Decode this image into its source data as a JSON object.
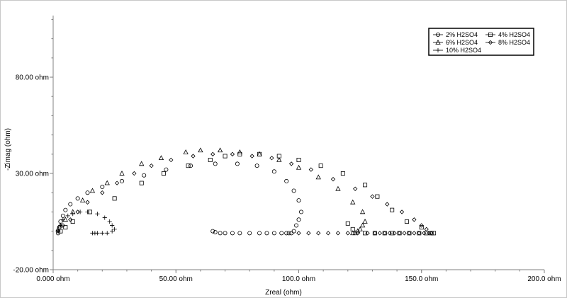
{
  "chart_data": {
    "type": "scatter",
    "xlabel": "Zreal (ohm)",
    "ylabel": "-Zimag (ohm)",
    "xlim": [
      0,
      200
    ],
    "ylim": [
      -20,
      112
    ],
    "x_ticks": [
      {
        "value": 0,
        "label": "0.000 ohm"
      },
      {
        "value": 50,
        "label": "50.00 ohm"
      },
      {
        "value": 100,
        "label": "100.0 ohm"
      },
      {
        "value": 150,
        "label": "150.0 ohm"
      },
      {
        "value": 200,
        "label": "200.0 ohm"
      }
    ],
    "y_ticks": [
      {
        "value": 80,
        "label": "80.00 ohm"
      },
      {
        "value": 30,
        "label": "30.00 ohm"
      },
      {
        "value": -20,
        "label": "-20.00 ohm"
      }
    ],
    "grid": false,
    "legend_position": "top-right",
    "series": [
      {
        "name": "2% H2SO4",
        "marker": "circle",
        "x": [
          2,
          2.5,
          3,
          4,
          5,
          7,
          10,
          14,
          20,
          28,
          37,
          46,
          56,
          66,
          75,
          83,
          90,
          95,
          98,
          100,
          101,
          100,
          99,
          98,
          97,
          96,
          95,
          93,
          90,
          87,
          84,
          80,
          76,
          73,
          70,
          68,
          66,
          65
        ],
        "y": [
          -1,
          2,
          5,
          8,
          11,
          14,
          17,
          20,
          23,
          26,
          29,
          32,
          34,
          35,
          35,
          34,
          31,
          26,
          21,
          16,
          10,
          6,
          3,
          0,
          -1,
          -1,
          -1,
          -1,
          -1,
          -1,
          -1,
          -1,
          -1,
          -1,
          -1,
          -1,
          -0.5,
          0
        ]
      },
      {
        "name": "4% H2SO4",
        "marker": "square",
        "x": [
          3,
          5,
          8,
          15,
          25,
          36,
          45,
          55,
          64,
          70,
          76,
          84,
          92,
          100,
          109,
          118,
          127,
          132,
          138,
          144,
          150,
          154,
          155,
          152,
          149,
          145,
          141,
          138,
          135,
          131,
          127,
          122,
          120
        ],
        "y": [
          0,
          2,
          5,
          10,
          17,
          25,
          30,
          34,
          37,
          39,
          40,
          40,
          39,
          37,
          34,
          30,
          24,
          18,
          11,
          5,
          2,
          -1,
          -1,
          -1,
          -1,
          -1,
          -1,
          -1,
          -1,
          -1,
          -1,
          1,
          4
        ]
      },
      {
        "name": "6% H2SO4",
        "marker": "triangle",
        "x": [
          2,
          3,
          5,
          8,
          12,
          16,
          22,
          28,
          36,
          44,
          54,
          60,
          68,
          76,
          84,
          92,
          100,
          108,
          116,
          122,
          126,
          127,
          126,
          125,
          124,
          123,
          122
        ],
        "y": [
          1,
          3,
          6,
          10,
          16,
          21,
          25,
          30,
          35,
          38,
          41,
          42,
          42,
          41,
          40,
          37,
          33,
          28,
          22,
          15,
          10,
          5,
          3,
          1,
          0,
          -1,
          -1
        ]
      },
      {
        "name": "8% H2SO4",
        "marker": "diamond",
        "x": [
          2,
          4,
          7,
          10,
          14,
          20,
          26,
          33,
          40,
          48,
          57,
          65,
          73,
          81,
          89,
          97,
          105,
          114,
          123,
          130,
          136,
          142,
          147,
          150,
          152,
          154,
          154,
          153,
          151,
          149,
          147,
          145,
          143,
          141,
          139,
          137,
          135,
          133,
          131,
          128,
          124,
          120,
          116,
          112,
          108,
          104,
          100
        ],
        "y": [
          0,
          3,
          6,
          10,
          15,
          20,
          25,
          30,
          34,
          37,
          39,
          40,
          40,
          39,
          38,
          35,
          32,
          27,
          22,
          18,
          14,
          10,
          6,
          3,
          1,
          -1,
          -1,
          -1,
          -1,
          -1,
          -1,
          -1,
          -1,
          -1,
          -1,
          -1,
          -1,
          -1,
          -1,
          -1,
          -1,
          -1,
          -1,
          -1,
          -1,
          -1,
          -1
        ]
      },
      {
        "name": "10% H2SO4",
        "marker": "plus",
        "x": [
          2,
          3,
          4,
          6,
          8,
          11,
          14,
          18,
          21,
          23,
          24,
          25,
          24,
          22,
          20,
          18,
          17,
          16
        ],
        "y": [
          0,
          3,
          6,
          8,
          9,
          10,
          10,
          9,
          7,
          5,
          3,
          1,
          0,
          -1,
          -1,
          -1,
          -1,
          -1
        ]
      }
    ]
  }
}
